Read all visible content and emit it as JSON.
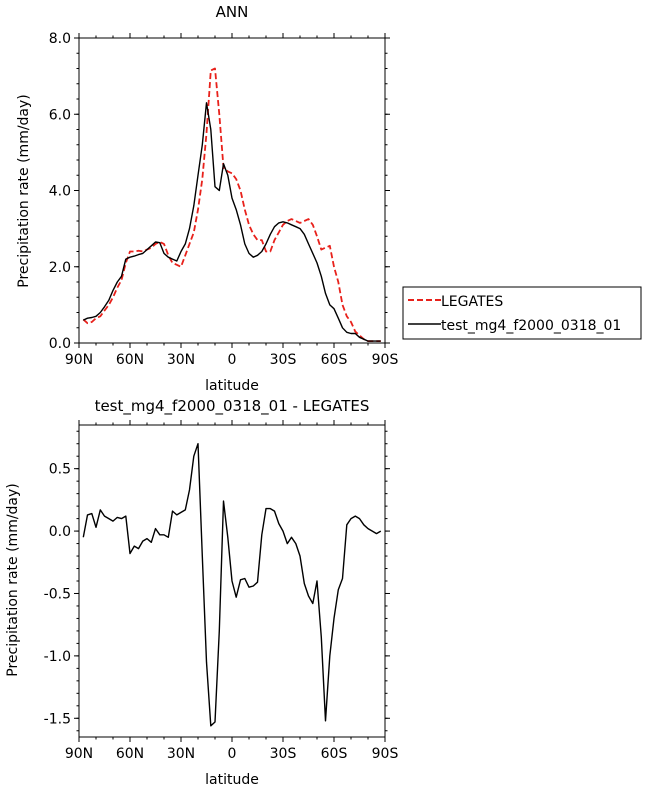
{
  "colors": {
    "legates": "#e8211b",
    "test": "#000000"
  },
  "chart_data": [
    {
      "type": "line",
      "title": "ANN",
      "xlabel": "latitude",
      "ylabel": "Precipitation rate (mm/day)",
      "xlim": [
        90,
        -90
      ],
      "ylim": [
        0,
        8
      ],
      "xticks": [
        90,
        60,
        30,
        0,
        -30,
        -60,
        -90
      ],
      "xtick_labels": [
        "90N",
        "60N",
        "30N",
        "0",
        "30S",
        "60S",
        "90S"
      ],
      "yticks": [
        0,
        2,
        4,
        6,
        8
      ],
      "ytick_labels": [
        "0.0",
        "2.0",
        "4.0",
        "6.0",
        "8.0"
      ],
      "legend_position": "right",
      "x": [
        87.5,
        85,
        82.5,
        80,
        77.5,
        75,
        72.5,
        70,
        67.5,
        65,
        62.5,
        60,
        57.5,
        55,
        52.5,
        50,
        47.5,
        45,
        42.5,
        40,
        37.5,
        35,
        32.5,
        30,
        27.5,
        25,
        22.5,
        20,
        17.5,
        15,
        12.5,
        10,
        7.5,
        5,
        2.5,
        0,
        -2.5,
        -5,
        -7.5,
        -10,
        -12.5,
        -15,
        -17.5,
        -20,
        -22.5,
        -25,
        -27.5,
        -30,
        -32.5,
        -35,
        -37.5,
        -40,
        -42.5,
        -45,
        -47.5,
        -50,
        -52.5,
        -55,
        -57.5,
        -60,
        -62.5,
        -65,
        -67.5,
        -70,
        -72.5,
        -75,
        -77.5,
        -80,
        -82.5,
        -85,
        -87.5
      ],
      "series": [
        {
          "name": "LEGATES",
          "style": "dashed",
          "values": [
            0.62,
            0.52,
            0.55,
            0.65,
            0.7,
            0.85,
            1.0,
            1.2,
            1.45,
            1.65,
            2.1,
            2.4,
            2.4,
            2.42,
            2.4,
            2.45,
            2.5,
            2.6,
            2.65,
            2.6,
            2.3,
            2.1,
            2.05,
            2.0,
            2.3,
            2.6,
            2.9,
            3.5,
            4.3,
            5.5,
            7.15,
            7.2,
            6.0,
            4.6,
            4.5,
            4.45,
            4.3,
            4.0,
            3.5,
            3.1,
            2.85,
            2.7,
            2.7,
            2.4,
            2.4,
            2.7,
            2.9,
            3.1,
            3.2,
            3.25,
            3.2,
            3.15,
            3.2,
            3.25,
            3.1,
            2.8,
            2.45,
            2.5,
            2.55,
            2.0,
            1.6,
            1.0,
            0.7,
            0.55,
            0.3,
            0.2,
            0.1,
            0.05,
            0.05,
            0.05,
            0.05
          ]
        },
        {
          "name": "test_mg4_f2000_0318_01",
          "style": "solid",
          "values": [
            0.6,
            0.65,
            0.67,
            0.7,
            0.8,
            0.95,
            1.12,
            1.38,
            1.6,
            1.75,
            2.2,
            2.25,
            2.28,
            2.32,
            2.35,
            2.45,
            2.55,
            2.65,
            2.63,
            2.35,
            2.25,
            2.2,
            2.15,
            2.4,
            2.6,
            3.0,
            3.6,
            4.4,
            5.2,
            6.3,
            5.6,
            4.1,
            4.0,
            4.7,
            4.4,
            3.8,
            3.5,
            3.1,
            2.6,
            2.35,
            2.25,
            2.3,
            2.4,
            2.6,
            2.85,
            3.05,
            3.15,
            3.18,
            3.15,
            3.1,
            3.05,
            3.0,
            2.85,
            2.6,
            2.35,
            2.1,
            1.75,
            1.3,
            1.0,
            0.9,
            0.65,
            0.4,
            0.28,
            0.25,
            0.25,
            0.15,
            0.1,
            0.05,
            0.05,
            0.05,
            0.05
          ]
        }
      ]
    },
    {
      "type": "line",
      "title": "test_mg4_f2000_0318_01 - LEGATES",
      "xlabel": "latitude",
      "ylabel": "Precipitation rate (mm/day)",
      "xlim": [
        90,
        -90
      ],
      "ylim": [
        -1.65,
        0.85
      ],
      "xticks": [
        90,
        60,
        30,
        0,
        -30,
        -60,
        -90
      ],
      "xtick_labels": [
        "90N",
        "60N",
        "30N",
        "0",
        "30S",
        "60S",
        "90S"
      ],
      "yticks": [
        -1.5,
        -1.0,
        -0.5,
        0.0,
        0.5
      ],
      "ytick_labels": [
        "-1.5",
        "-1.0",
        "-0.5",
        "0.0",
        "0.5"
      ],
      "x": [
        87.5,
        85,
        82.5,
        80,
        77.5,
        75,
        72.5,
        70,
        67.5,
        65,
        62.5,
        60,
        57.5,
        55,
        52.5,
        50,
        47.5,
        45,
        42.5,
        40,
        37.5,
        35,
        32.5,
        30,
        27.5,
        25,
        22.5,
        20,
        17.5,
        15,
        12.5,
        10,
        7.5,
        5,
        2.5,
        0,
        -2.5,
        -5,
        -7.5,
        -10,
        -12.5,
        -15,
        -17.5,
        -20,
        -22.5,
        -25,
        -27.5,
        -30,
        -32.5,
        -35,
        -37.5,
        -40,
        -42.5,
        -45,
        -47.5,
        -50,
        -52.5,
        -55,
        -57.5,
        -60,
        -62.5,
        -65,
        -67.5,
        -70,
        -72.5,
        -75,
        -77.5,
        -80,
        -82.5,
        -85,
        -87.5
      ],
      "series": [
        {
          "style": "solid",
          "values": [
            -0.05,
            0.13,
            0.14,
            0.03,
            0.17,
            0.12,
            0.1,
            0.08,
            0.11,
            0.1,
            0.12,
            -0.18,
            -0.12,
            -0.14,
            -0.08,
            -0.06,
            -0.09,
            0.02,
            -0.03,
            -0.03,
            -0.05,
            0.16,
            0.13,
            0.15,
            0.17,
            0.33,
            0.6,
            0.7,
            -0.2,
            -1.05,
            -1.56,
            -1.53,
            -0.8,
            0.24,
            -0.05,
            -0.4,
            -0.53,
            -0.39,
            -0.38,
            -0.45,
            -0.44,
            -0.41,
            -0.03,
            0.18,
            0.18,
            0.16,
            0.06,
            0.0,
            -0.1,
            -0.05,
            -0.1,
            -0.2,
            -0.42,
            -0.52,
            -0.58,
            -0.4,
            -0.85,
            -1.52,
            -1.0,
            -0.7,
            -0.47,
            -0.38,
            0.05,
            0.1,
            0.12,
            0.1,
            0.05,
            0.02,
            0.0,
            -0.02,
            0.0
          ]
        }
      ]
    }
  ]
}
